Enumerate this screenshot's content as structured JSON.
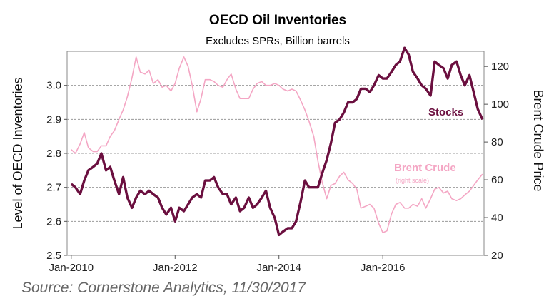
{
  "chart_data": {
    "type": "line",
    "title": "OECD Oil Inventories",
    "subtitle": "Excludes SPRs, Billion barrels",
    "ylabel": "Level of OECD Inventories",
    "y2label": "Brent Crude Price",
    "ylim": [
      2.5,
      3.1
    ],
    "y2lim": [
      20,
      128
    ],
    "x_range": [
      2009.92,
      2017.95
    ],
    "yticks": [
      "2.5",
      "2.6",
      "2.7",
      "2.8",
      "2.9",
      "3.0"
    ],
    "y2ticks": [
      "20",
      "40",
      "60",
      "80",
      "100",
      "120"
    ],
    "xticks": [
      {
        "label": "Jan-2010",
        "value": 2010
      },
      {
        "label": "Jan-2012",
        "value": 2012
      },
      {
        "label": "Jan-2014",
        "value": 2014
      },
      {
        "label": "Jan-2016",
        "value": 2016
      }
    ],
    "gridlines": [
      2.6,
      2.7,
      2.8,
      2.9,
      3.0
    ],
    "series": [
      {
        "name": "Stocks",
        "axis": "left",
        "color": "#6b0f3f",
        "x": [
          2010.0,
          2010.08,
          2010.17,
          2010.25,
          2010.33,
          2010.42,
          2010.5,
          2010.58,
          2010.67,
          2010.75,
          2010.83,
          2010.92,
          2011.0,
          2011.08,
          2011.17,
          2011.25,
          2011.33,
          2011.42,
          2011.5,
          2011.58,
          2011.67,
          2011.75,
          2011.83,
          2011.92,
          2012.0,
          2012.08,
          2012.17,
          2012.25,
          2012.33,
          2012.42,
          2012.5,
          2012.58,
          2012.67,
          2012.75,
          2012.83,
          2012.92,
          2013.0,
          2013.08,
          2013.17,
          2013.25,
          2013.33,
          2013.42,
          2013.5,
          2013.58,
          2013.67,
          2013.75,
          2013.83,
          2013.92,
          2014.0,
          2014.08,
          2014.17,
          2014.25,
          2014.33,
          2014.42,
          2014.5,
          2014.58,
          2014.67,
          2014.75,
          2014.83,
          2014.92,
          2015.0,
          2015.08,
          2015.17,
          2015.25,
          2015.33,
          2015.42,
          2015.5,
          2015.58,
          2015.67,
          2015.75,
          2015.83,
          2015.92,
          2016.0,
          2016.08,
          2016.17,
          2016.25,
          2016.33,
          2016.42,
          2016.5,
          2016.58,
          2016.67,
          2016.75,
          2016.83,
          2016.92,
          2017.0,
          2017.08,
          2017.17,
          2017.25,
          2017.33,
          2017.42,
          2017.5,
          2017.58,
          2017.67,
          2017.75,
          2017.83,
          2017.92
        ],
        "values": [
          2.71,
          2.7,
          2.68,
          2.72,
          2.75,
          2.76,
          2.77,
          2.8,
          2.75,
          2.76,
          2.72,
          2.68,
          2.73,
          2.67,
          2.64,
          2.67,
          2.69,
          2.68,
          2.69,
          2.68,
          2.67,
          2.64,
          2.62,
          2.64,
          2.6,
          2.64,
          2.63,
          2.65,
          2.67,
          2.68,
          2.67,
          2.72,
          2.72,
          2.73,
          2.7,
          2.68,
          2.68,
          2.65,
          2.67,
          2.63,
          2.64,
          2.67,
          2.64,
          2.65,
          2.67,
          2.69,
          2.64,
          2.61,
          2.56,
          2.57,
          2.58,
          2.58,
          2.6,
          2.66,
          2.72,
          2.7,
          2.7,
          2.7,
          2.74,
          2.78,
          2.83,
          2.89,
          2.9,
          2.92,
          2.95,
          2.95,
          2.96,
          2.99,
          2.99,
          2.98,
          3.0,
          3.03,
          3.02,
          3.02,
          3.04,
          3.06,
          3.07,
          3.11,
          3.09,
          3.04,
          3.02,
          3.0,
          2.99,
          2.97,
          3.07,
          3.06,
          3.05,
          3.02,
          3.06,
          3.07,
          3.03,
          3.0,
          3.03,
          2.98,
          2.93,
          2.9
        ]
      },
      {
        "name": "Brent Crude",
        "axis": "right",
        "color": "#f4a6c4",
        "x": [
          2010.0,
          2010.08,
          2010.17,
          2010.25,
          2010.33,
          2010.42,
          2010.5,
          2010.58,
          2010.67,
          2010.75,
          2010.83,
          2010.92,
          2011.0,
          2011.08,
          2011.17,
          2011.25,
          2011.33,
          2011.42,
          2011.5,
          2011.58,
          2011.67,
          2011.75,
          2011.83,
          2011.92,
          2012.0,
          2012.08,
          2012.17,
          2012.25,
          2012.33,
          2012.42,
          2012.5,
          2012.58,
          2012.67,
          2012.75,
          2012.83,
          2012.92,
          2013.0,
          2013.08,
          2013.17,
          2013.25,
          2013.33,
          2013.42,
          2013.5,
          2013.58,
          2013.67,
          2013.75,
          2013.83,
          2013.92,
          2014.0,
          2014.08,
          2014.17,
          2014.25,
          2014.33,
          2014.42,
          2014.5,
          2014.58,
          2014.67,
          2014.75,
          2014.83,
          2014.92,
          2015.0,
          2015.08,
          2015.17,
          2015.25,
          2015.33,
          2015.42,
          2015.5,
          2015.58,
          2015.67,
          2015.75,
          2015.83,
          2015.92,
          2016.0,
          2016.08,
          2016.17,
          2016.25,
          2016.33,
          2016.42,
          2016.5,
          2016.58,
          2016.67,
          2016.75,
          2016.83,
          2016.92,
          2017.0,
          2017.08,
          2017.17,
          2017.25,
          2017.33,
          2017.42,
          2017.5,
          2017.58,
          2017.67,
          2017.75,
          2017.83,
          2017.92
        ],
        "values": [
          76,
          74,
          79,
          85,
          77,
          75,
          75,
          78,
          78,
          83,
          86,
          92,
          97,
          104,
          114,
          125,
          117,
          116,
          118,
          111,
          113,
          109,
          110,
          107,
          111,
          119,
          125,
          120,
          110,
          96,
          103,
          113,
          113,
          112,
          110,
          109,
          113,
          116,
          108,
          103,
          103,
          103,
          108,
          111,
          112,
          110,
          110,
          111,
          110,
          108,
          107,
          108,
          107,
          102,
          97,
          91,
          83,
          70,
          59,
          50,
          57,
          58,
          62,
          64,
          60,
          58,
          55,
          45,
          46,
          47,
          45,
          37,
          32,
          33,
          42,
          47,
          48,
          45,
          45,
          47,
          46,
          50,
          45,
          50,
          55,
          56,
          53,
          54,
          50,
          49,
          50,
          52,
          54,
          57,
          60,
          63
        ]
      }
    ],
    "annotations": {
      "stocks_label": "Stocks",
      "brent_label": "Brent Crude",
      "brent_note": "(right scale)"
    }
  },
  "source": "Source: Cornerstone Analytics, 11/30/2017"
}
